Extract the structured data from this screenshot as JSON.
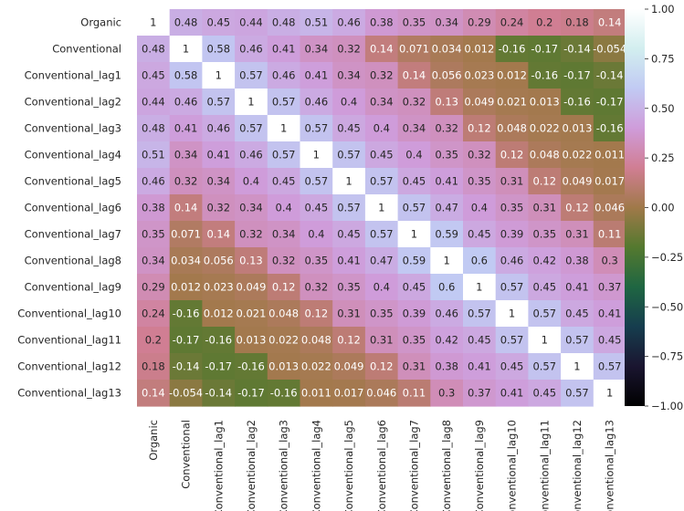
{
  "chart_data": {
    "type": "heatmap",
    "title": "",
    "xlabel": "",
    "ylabel": "",
    "labels": [
      "Organic",
      "Conventional",
      "Conventional_lag1",
      "Conventional_lag2",
      "Conventional_lag3",
      "Conventional_lag4",
      "Conventional_lag5",
      "Conventional_lag6",
      "Conventional_lag7",
      "Conventional_lag8",
      "Conventional_lag9",
      "Conventional_lag10",
      "Conventional_lag11",
      "Conventional_lag12",
      "Conventional_lag13"
    ],
    "values": [
      [
        1,
        0.48,
        0.45,
        0.44,
        0.48,
        0.51,
        0.46,
        0.38,
        0.35,
        0.34,
        0.29,
        0.24,
        0.2,
        0.18,
        0.14
      ],
      [
        0.48,
        1,
        0.58,
        0.46,
        0.41,
        0.34,
        0.32,
        0.14,
        0.071,
        0.034,
        0.012,
        -0.16,
        -0.17,
        -0.14,
        -0.054
      ],
      [
        0.45,
        0.58,
        1,
        0.57,
        0.46,
        0.41,
        0.34,
        0.32,
        0.14,
        0.056,
        0.023,
        0.012,
        -0.16,
        -0.17,
        -0.14
      ],
      [
        0.44,
        0.46,
        0.57,
        1,
        0.57,
        0.46,
        0.4,
        0.34,
        0.32,
        0.13,
        0.049,
        0.021,
        0.013,
        -0.16,
        -0.17
      ],
      [
        0.48,
        0.41,
        0.46,
        0.57,
        1,
        0.57,
        0.45,
        0.4,
        0.34,
        0.32,
        0.12,
        0.048,
        0.022,
        0.013,
        -0.16
      ],
      [
        0.51,
        0.34,
        0.41,
        0.46,
        0.57,
        1,
        0.57,
        0.45,
        0.4,
        0.35,
        0.32,
        0.12,
        0.048,
        0.022,
        0.011
      ],
      [
        0.46,
        0.32,
        0.34,
        0.4,
        0.45,
        0.57,
        1,
        0.57,
        0.45,
        0.41,
        0.35,
        0.31,
        0.12,
        0.049,
        0.017
      ],
      [
        0.38,
        0.14,
        0.32,
        0.34,
        0.4,
        0.45,
        0.57,
        1,
        0.57,
        0.47,
        0.4,
        0.35,
        0.31,
        0.12,
        0.046
      ],
      [
        0.35,
        0.071,
        0.14,
        0.32,
        0.34,
        0.4,
        0.45,
        0.57,
        1,
        0.59,
        0.45,
        0.39,
        0.35,
        0.31,
        0.11
      ],
      [
        0.34,
        0.034,
        0.056,
        0.13,
        0.32,
        0.35,
        0.41,
        0.47,
        0.59,
        1,
        0.6,
        0.46,
        0.42,
        0.38,
        0.3
      ],
      [
        0.29,
        0.012,
        0.023,
        0.049,
        0.12,
        0.32,
        0.35,
        0.4,
        0.45,
        0.6,
        1,
        0.57,
        0.45,
        0.41,
        0.37
      ],
      [
        0.24,
        -0.16,
        0.012,
        0.021,
        0.048,
        0.12,
        0.31,
        0.35,
        0.39,
        0.46,
        0.57,
        1,
        0.57,
        0.45,
        0.41
      ],
      [
        0.2,
        -0.17,
        -0.16,
        0.013,
        0.022,
        0.048,
        0.12,
        0.31,
        0.35,
        0.42,
        0.45,
        0.57,
        1,
        0.57,
        0.45
      ],
      [
        0.18,
        -0.14,
        -0.17,
        -0.16,
        0.013,
        0.022,
        0.049,
        0.12,
        0.31,
        0.38,
        0.41,
        0.45,
        0.57,
        1,
        0.57
      ],
      [
        0.14,
        -0.054,
        -0.14,
        -0.17,
        -0.16,
        0.011,
        0.017,
        0.046,
        0.11,
        0.3,
        0.37,
        0.41,
        0.45,
        0.57,
        1
      ]
    ],
    "value_labels": [
      [
        "1",
        "0.48",
        "0.45",
        "0.44",
        "0.48",
        "0.51",
        "0.46",
        "0.38",
        "0.35",
        "0.34",
        "0.29",
        "0.24",
        "0.2",
        "0.18",
        "0.14"
      ],
      [
        "0.48",
        "1",
        "0.58",
        "0.46",
        "0.41",
        "0.34",
        "0.32",
        "0.14",
        "0.071",
        "0.034",
        "0.012",
        "-0.16",
        "-0.17",
        "-0.14",
        "-0.054"
      ],
      [
        "0.45",
        "0.58",
        "1",
        "0.57",
        "0.46",
        "0.41",
        "0.34",
        "0.32",
        "0.14",
        "0.056",
        "0.023",
        "0.012",
        "-0.16",
        "-0.17",
        "-0.14"
      ],
      [
        "0.44",
        "0.46",
        "0.57",
        "1",
        "0.57",
        "0.46",
        "0.4",
        "0.34",
        "0.32",
        "0.13",
        "0.049",
        "0.021",
        "0.013",
        "-0.16",
        "-0.17"
      ],
      [
        "0.48",
        "0.41",
        "0.46",
        "0.57",
        "1",
        "0.57",
        "0.45",
        "0.4",
        "0.34",
        "0.32",
        "0.12",
        "0.048",
        "0.022",
        "0.013",
        "-0.16"
      ],
      [
        "0.51",
        "0.34",
        "0.41",
        "0.46",
        "0.57",
        "1",
        "0.57",
        "0.45",
        "0.4",
        "0.35",
        "0.32",
        "0.12",
        "0.048",
        "0.022",
        "0.011"
      ],
      [
        "0.46",
        "0.32",
        "0.34",
        "0.4",
        "0.45",
        "0.57",
        "1",
        "0.57",
        "0.45",
        "0.41",
        "0.35",
        "0.31",
        "0.12",
        "0.049",
        "0.017"
      ],
      [
        "0.38",
        "0.14",
        "0.32",
        "0.34",
        "0.4",
        "0.45",
        "0.57",
        "1",
        "0.57",
        "0.47",
        "0.4",
        "0.35",
        "0.31",
        "0.12",
        "0.046"
      ],
      [
        "0.35",
        "0.071",
        "0.14",
        "0.32",
        "0.34",
        "0.4",
        "0.45",
        "0.57",
        "1",
        "0.59",
        "0.45",
        "0.39",
        "0.35",
        "0.31",
        "0.11"
      ],
      [
        "0.34",
        "0.034",
        "0.056",
        "0.13",
        "0.32",
        "0.35",
        "0.41",
        "0.47",
        "0.59",
        "1",
        "0.6",
        "0.46",
        "0.42",
        "0.38",
        "0.3"
      ],
      [
        "0.29",
        "0.012",
        "0.023",
        "0.049",
        "0.12",
        "0.32",
        "0.35",
        "0.4",
        "0.45",
        "0.6",
        "1",
        "0.57",
        "0.45",
        "0.41",
        "0.37"
      ],
      [
        "0.24",
        "-0.16",
        "0.012",
        "0.021",
        "0.048",
        "0.12",
        "0.31",
        "0.35",
        "0.39",
        "0.46",
        "0.57",
        "1",
        "0.57",
        "0.45",
        "0.41"
      ],
      [
        "0.2",
        "-0.17",
        "-0.16",
        "0.013",
        "0.022",
        "0.048",
        "0.12",
        "0.31",
        "0.35",
        "0.42",
        "0.45",
        "0.57",
        "1",
        "0.57",
        "0.45"
      ],
      [
        "0.18",
        "-0.14",
        "-0.17",
        "-0.16",
        "0.013",
        "0.022",
        "0.049",
        "0.12",
        "0.31",
        "0.38",
        "0.41",
        "0.45",
        "0.57",
        "1",
        "0.57"
      ],
      [
        "0.14",
        "-0.054",
        "-0.14",
        "-0.17",
        "-0.16",
        "0.011",
        "0.017",
        "0.046",
        "0.11",
        "0.3",
        "0.37",
        "0.41",
        "0.45",
        "0.57",
        "1"
      ]
    ],
    "colorbar": {
      "vmin": -1,
      "vmax": 1,
      "ticks": [
        1,
        0.75,
        0.5,
        0.25,
        0,
        -0.25,
        -0.5,
        -0.75,
        -1
      ],
      "tick_labels": [
        "1.00",
        "0.75",
        "0.50",
        "0.25",
        "0.00",
        "−0.25",
        "−0.50",
        "−0.75",
        "−1.00"
      ],
      "colormap": "cubehelix",
      "colors": [
        "#000000",
        "#1a1530",
        "#163d4e",
        "#1f6642",
        "#54792f",
        "#a07949",
        "#d07e93",
        "#cf9cda",
        "#c1caf3",
        "#d2eeef",
        "#ffffff"
      ]
    },
    "grid": false
  }
}
